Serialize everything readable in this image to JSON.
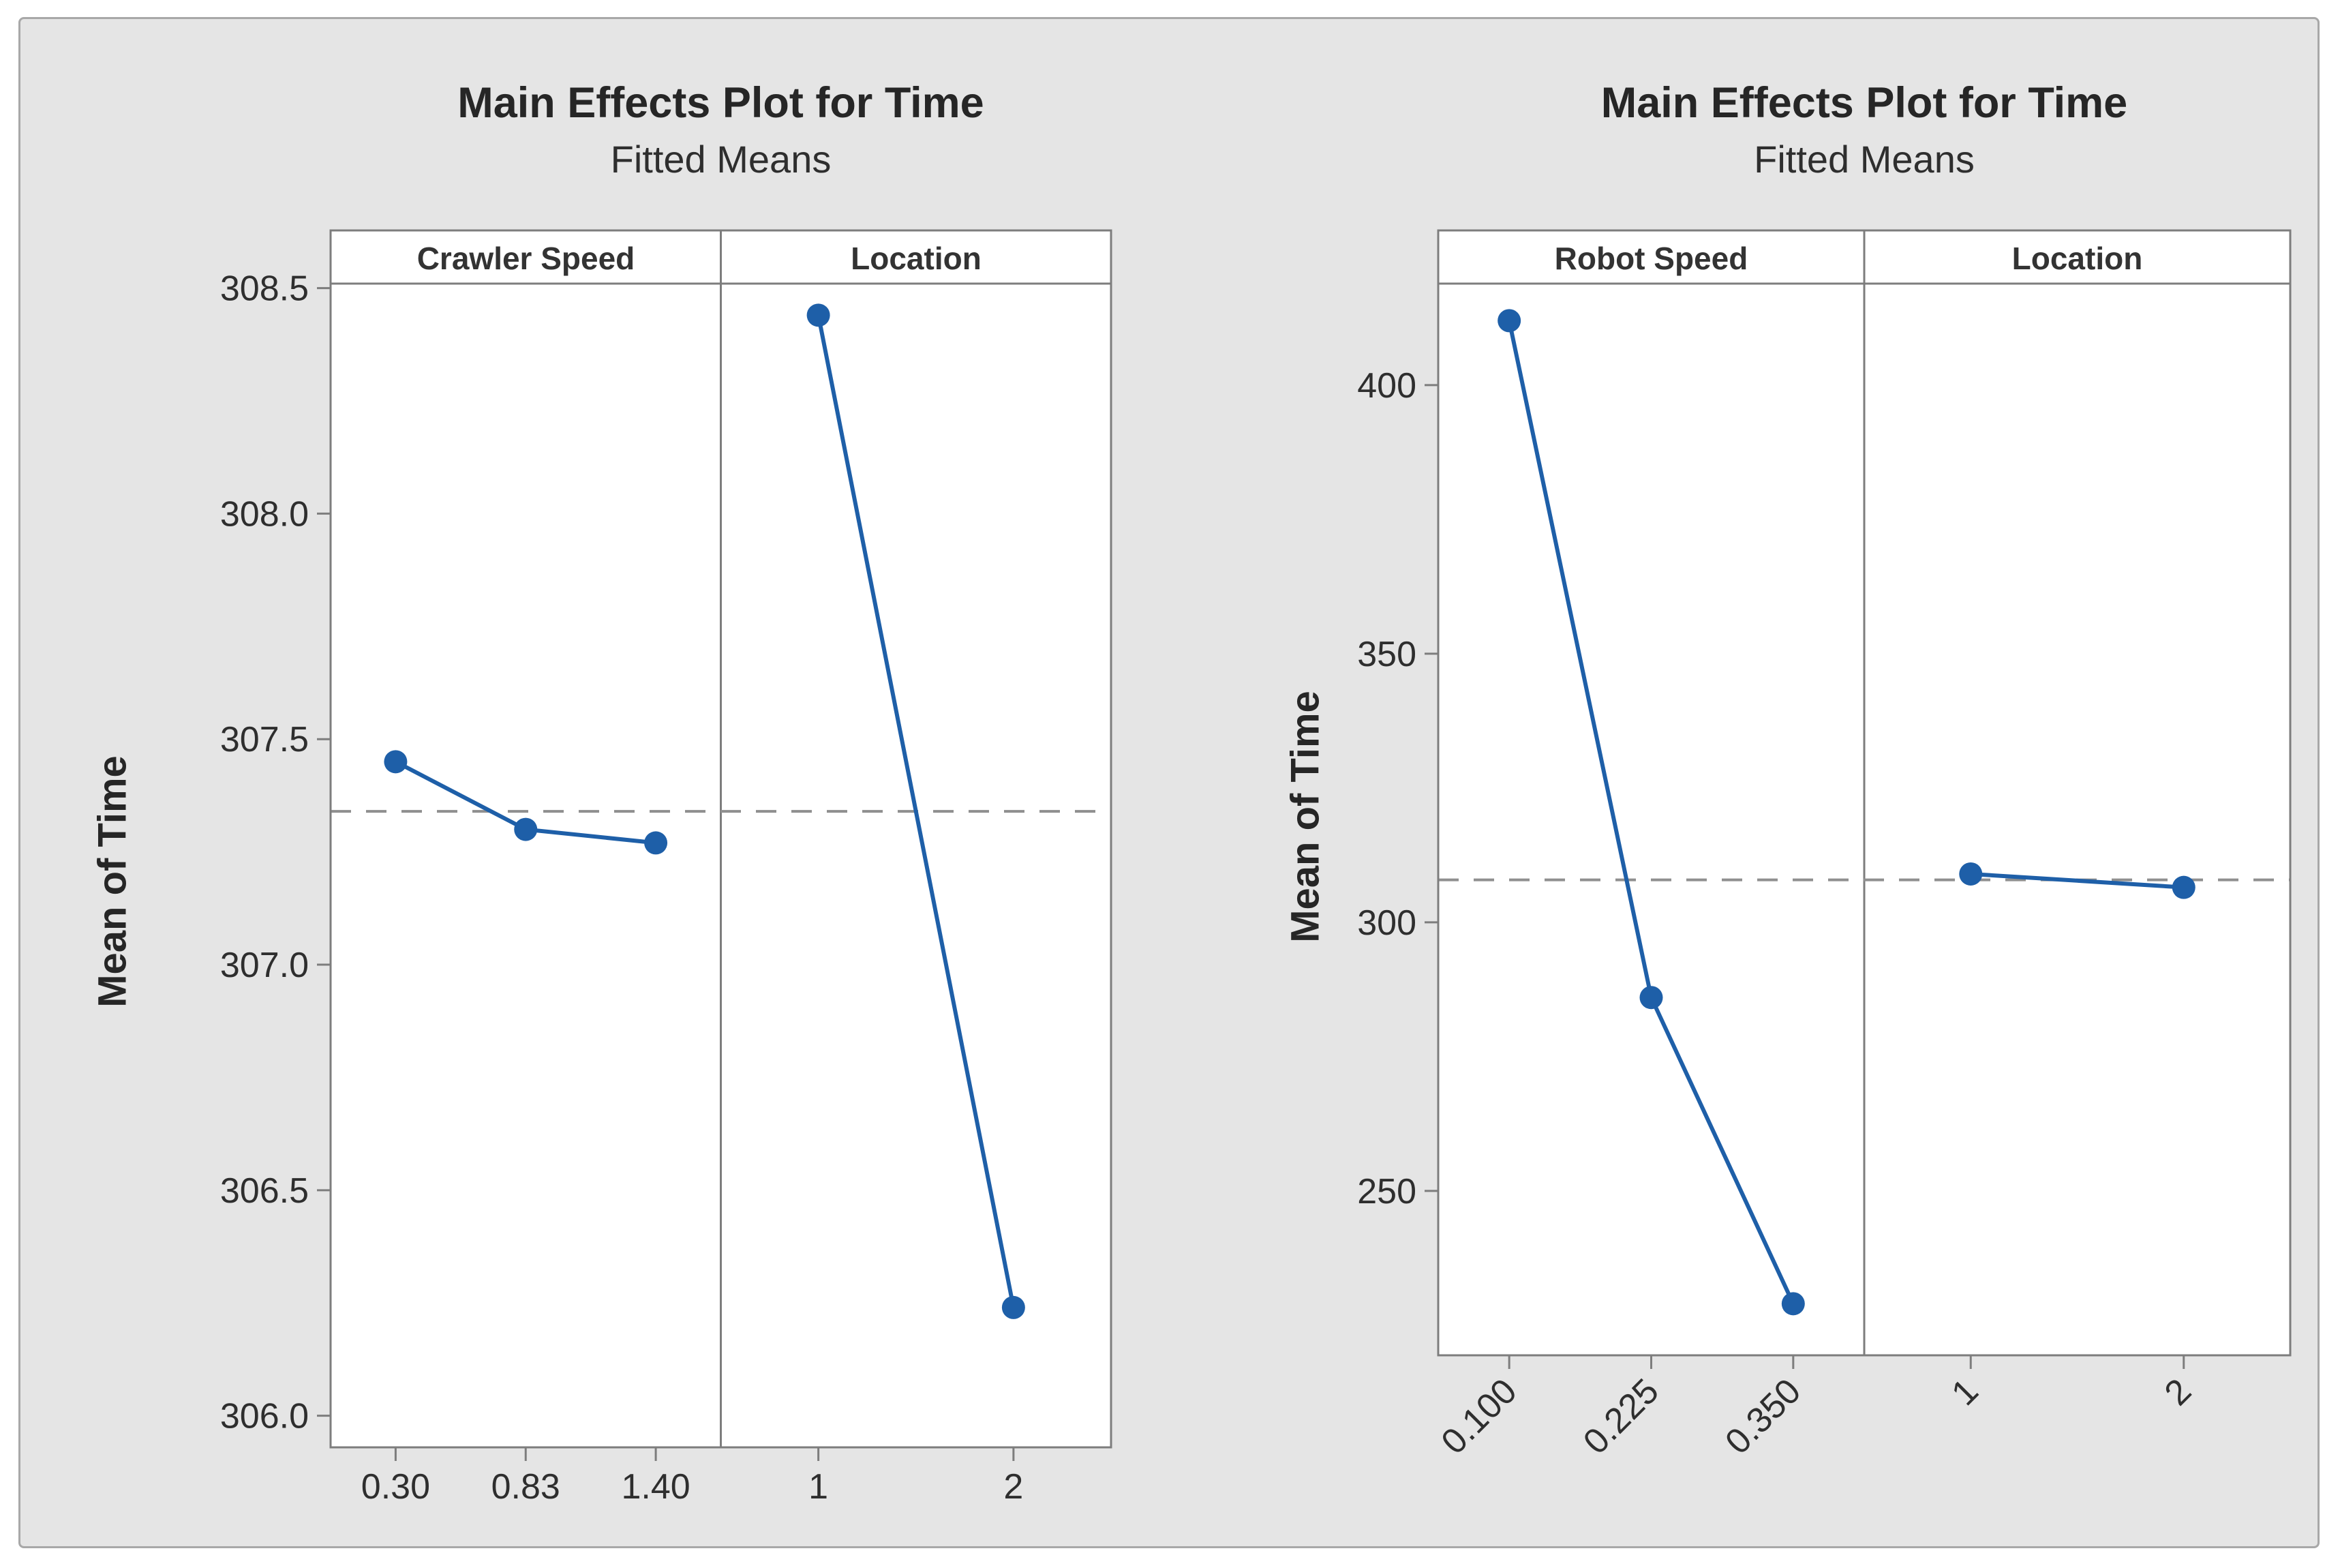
{
  "page": {
    "background": "#ffffff",
    "canvas_background": "#e5e5e5",
    "plot_background": "#ffffff",
    "series_color": "#1e5fa8",
    "dashed_mean_color": "#8f8f8f",
    "frame_color": "#7d7d7d",
    "text_color": "#2e2e2e"
  },
  "chart_data": [
    {
      "type": "line",
      "title": "Main Effects Plot for Time",
      "subtitle": "Fitted Means",
      "ylabel": "Mean of Time",
      "grid": false,
      "legend": false,
      "ylim": [
        305.93,
        308.51
      ],
      "y_ticks": [
        "306.0",
        "306.5",
        "307.0",
        "307.5",
        "308.0",
        "308.5"
      ],
      "x_tick_rotation": 0,
      "grand_mean": 307.34,
      "panels": [
        {
          "header": "Crawler Speed",
          "categories": [
            "0.30",
            "0.83",
            "1.40"
          ],
          "values": [
            307.45,
            307.3,
            307.27
          ]
        },
        {
          "header": "Location",
          "categories": [
            "1",
            "2"
          ],
          "values": [
            308.44,
            306.24
          ]
        }
      ]
    },
    {
      "type": "line",
      "title": "Main Effects Plot for Time",
      "subtitle": "Fitted Means",
      "ylabel": "Mean of Time",
      "grid": false,
      "legend": false,
      "ylim": [
        219.4,
        418.9
      ],
      "y_ticks": [
        "250",
        "300",
        "350",
        "400"
      ],
      "x_tick_rotation": -45,
      "grand_mean": 307.9,
      "panels": [
        {
          "header": "Robot Speed",
          "categories": [
            "0.100",
            "0.225",
            "0.350"
          ],
          "values": [
            412,
            286,
            229
          ]
        },
        {
          "header": "Location",
          "categories": [
            "1",
            "2"
          ],
          "values": [
            309,
            306.5
          ]
        }
      ]
    }
  ]
}
